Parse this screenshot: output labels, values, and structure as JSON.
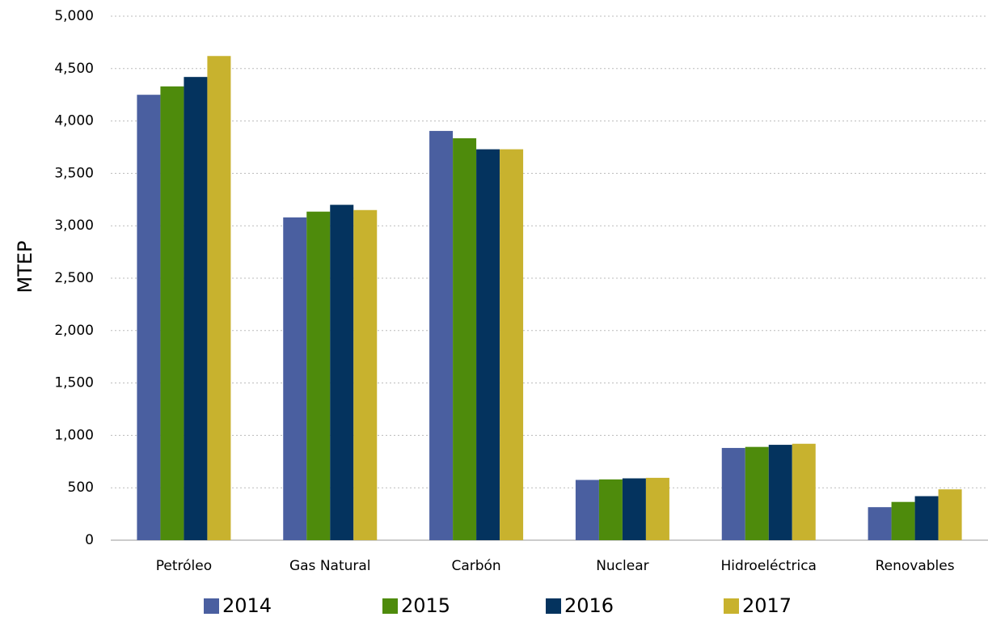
{
  "chart_data": {
    "type": "bar",
    "y_label": "MTEP",
    "categories": [
      "Petróleo",
      "Gas Natural",
      "Carbón",
      "Nuclear",
      "Hidroeléctrica",
      "Renovables"
    ],
    "series": [
      {
        "name": "2014",
        "color": "#4a5fa0",
        "values": [
          4250,
          3080,
          3905,
          575,
          880,
          315
        ]
      },
      {
        "name": "2015",
        "color": "#4e8b0c",
        "values": [
          4330,
          3135,
          3835,
          580,
          890,
          365
        ]
      },
      {
        "name": "2016",
        "color": "#04335e",
        "values": [
          4420,
          3200,
          3730,
          590,
          910,
          420
        ]
      },
      {
        "name": "2017",
        "color": "#c8b22e",
        "values": [
          4620,
          3150,
          3730,
          595,
          920,
          485
        ]
      }
    ],
    "ylim": [
      0,
      5000
    ],
    "yticks": [
      0,
      500,
      {
        "value": 1000,
        "label": "1,000"
      },
      {
        "value": 1500,
        "label": "1,500"
      },
      {
        "value": 2000,
        "label": "2,000"
      },
      {
        "value": 2500,
        "label": "2,500"
      },
      {
        "value": 3000,
        "label": "3,000"
      },
      {
        "value": 3500,
        "label": "3,500"
      },
      {
        "value": 4000,
        "label": "4,000"
      },
      {
        "value": 4500,
        "label": "4,500"
      },
      {
        "value": 5000,
        "label": "5,000"
      }
    ],
    "grid": true,
    "legend": "bottom"
  }
}
